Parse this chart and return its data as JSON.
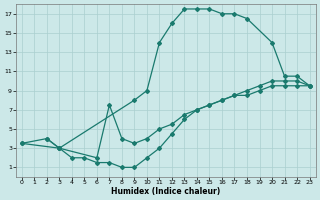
{
  "xlabel": "Humidex (Indice chaleur)",
  "bg_color": "#cce8e8",
  "grid_color": "#aacfcf",
  "line_color": "#1a7a6e",
  "xlim": [
    -0.5,
    23.5
  ],
  "ylim": [
    0,
    18
  ],
  "xticks": [
    0,
    1,
    2,
    3,
    4,
    5,
    6,
    7,
    8,
    9,
    10,
    11,
    12,
    13,
    14,
    15,
    16,
    17,
    18,
    19,
    20,
    21,
    22,
    23
  ],
  "yticks": [
    1,
    3,
    5,
    7,
    9,
    11,
    13,
    15,
    17
  ],
  "curve1_x": [
    2,
    3,
    9,
    10,
    11,
    12,
    13,
    14,
    15,
    16,
    17,
    18,
    20,
    21,
    22,
    23
  ],
  "curve1_y": [
    4,
    3,
    8,
    9,
    14,
    16,
    17.5,
    17.5,
    17.5,
    17,
    17,
    16.5,
    14,
    10.5,
    10.5,
    9.5
  ],
  "curve2_x": [
    0,
    2,
    3,
    4,
    5,
    6,
    7,
    8,
    9,
    10,
    11,
    12,
    13,
    14,
    15,
    16,
    17,
    18,
    19,
    20,
    21,
    22,
    23
  ],
  "curve2_y": [
    3.5,
    4,
    3,
    2,
    2,
    1.5,
    1.5,
    1,
    1,
    2,
    3,
    4.5,
    6,
    7,
    7.5,
    8,
    8.5,
    9,
    9.5,
    10,
    10,
    10,
    9.5
  ],
  "curve3_x": [
    0,
    3,
    6,
    7,
    8,
    9,
    10,
    11,
    12,
    13,
    14,
    15,
    16,
    17,
    18,
    19,
    20,
    21,
    22,
    23
  ],
  "curve3_y": [
    3.5,
    3,
    2,
    7.5,
    4,
    3.5,
    4,
    5,
    5.5,
    6.5,
    7,
    7.5,
    8,
    8.5,
    8.5,
    9,
    9.5,
    9.5,
    9.5,
    9.5
  ]
}
